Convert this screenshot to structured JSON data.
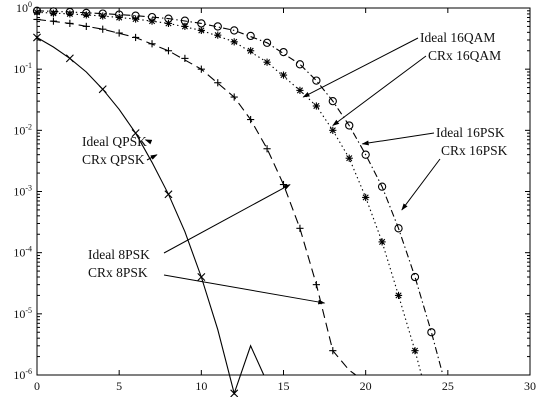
{
  "chart_data": {
    "type": "line",
    "title": "",
    "xlabel": "",
    "ylabel": "",
    "xlim": [
      0,
      30
    ],
    "ylim": [
      1e-06,
      1
    ],
    "yscale": "log",
    "grid": false,
    "xticks": [
      0,
      5,
      10,
      15,
      20,
      25,
      30
    ],
    "xtick_labels": [
      "0",
      "5",
      "10",
      "15",
      "20",
      "25",
      "30"
    ],
    "yticks": [
      1,
      0.1,
      0.01,
      0.001,
      0.0001,
      1e-05,
      1e-06
    ],
    "ytick_labels": [
      {
        "base": "10",
        "exp": "0"
      },
      {
        "base": "10",
        "exp": "-1"
      },
      {
        "base": "10",
        "exp": "-2"
      },
      {
        "base": "10",
        "exp": "-3"
      },
      {
        "base": "10",
        "exp": "-4"
      },
      {
        "base": "10",
        "exp": "-5"
      },
      {
        "base": "10",
        "exp": "-6"
      }
    ],
    "series": [
      {
        "name": "Ideal QPSK",
        "style": "solid",
        "color": "#000000",
        "x": [
          0,
          1,
          2,
          3,
          4,
          5,
          6,
          7,
          8,
          9,
          10,
          11,
          12,
          13,
          13.8
        ],
        "y": [
          0.33,
          0.23,
          0.15,
          0.09,
          0.047,
          0.022,
          0.009,
          0.003,
          0.0009,
          0.00022,
          4e-05,
          5.5e-06,
          5e-07,
          3e-06,
          1e-06
        ]
      },
      {
        "name": "CRx QPSK",
        "marker": "x",
        "color": "#000000",
        "x": [
          0,
          2,
          4,
          6,
          8,
          10,
          12
        ],
        "y": [
          0.33,
          0.15,
          0.047,
          0.009,
          0.0009,
          4e-05,
          5e-07
        ]
      },
      {
        "name": "Ideal 8PSK",
        "style": "dashed",
        "color": "#000000",
        "x": [
          0,
          2,
          4,
          6,
          8,
          10,
          12,
          13,
          14,
          15,
          16,
          17,
          18,
          19,
          19.4
        ],
        "y": [
          0.65,
          0.56,
          0.45,
          0.33,
          0.2,
          0.1,
          0.035,
          0.015,
          0.005,
          0.0013,
          0.00025,
          3e-05,
          2.5e-06,
          1.2e-06,
          1e-06
        ]
      },
      {
        "name": "CRx 8PSK",
        "marker": "+",
        "color": "#000000",
        "x": [
          0,
          1,
          2,
          3,
          4,
          5,
          6,
          7,
          8,
          9,
          10,
          11,
          12,
          13,
          14,
          15,
          16,
          17,
          18
        ],
        "y": [
          0.65,
          0.61,
          0.56,
          0.5,
          0.45,
          0.39,
          0.33,
          0.26,
          0.2,
          0.15,
          0.1,
          0.06,
          0.035,
          0.015,
          0.005,
          0.0013,
          0.00025,
          3e-05,
          2.5e-06
        ]
      },
      {
        "name": "Ideal 16QAM",
        "style": "dotted",
        "color": "#000000",
        "x": [
          0,
          2,
          4,
          6,
          8,
          10,
          12,
          14,
          16,
          17,
          18,
          19,
          20,
          21,
          22,
          23,
          23.4
        ],
        "y": [
          0.85,
          0.8,
          0.74,
          0.66,
          0.56,
          0.43,
          0.28,
          0.13,
          0.045,
          0.025,
          0.01,
          0.0035,
          0.0008,
          0.00015,
          2e-05,
          2.5e-06,
          1e-06
        ]
      },
      {
        "name": "CRx 16QAM",
        "marker": "*",
        "color": "#000000",
        "x": [
          0,
          1,
          2,
          3,
          4,
          5,
          6,
          7,
          8,
          9,
          10,
          11,
          12,
          13,
          14,
          15,
          16,
          17,
          18,
          19,
          20,
          21,
          22,
          23
        ],
        "y": [
          0.85,
          0.82,
          0.8,
          0.77,
          0.74,
          0.7,
          0.66,
          0.61,
          0.56,
          0.5,
          0.43,
          0.36,
          0.28,
          0.2,
          0.13,
          0.08,
          0.045,
          0.025,
          0.01,
          0.0035,
          0.0008,
          0.00015,
          2e-05,
          2.5e-06
        ]
      },
      {
        "name": "Ideal 16PSK",
        "style": "dashdot",
        "color": "#000000",
        "x": [
          0,
          2,
          4,
          6,
          8,
          10,
          12,
          14,
          16,
          17,
          18,
          19,
          20,
          21,
          22,
          23,
          24,
          24.7
        ],
        "y": [
          0.9,
          0.86,
          0.81,
          0.75,
          0.67,
          0.56,
          0.43,
          0.27,
          0.12,
          0.065,
          0.03,
          0.012,
          0.004,
          0.0012,
          0.00025,
          4e-05,
          5e-06,
          1e-06
        ]
      },
      {
        "name": "CRx 16PSK",
        "marker": "o",
        "color": "#000000",
        "x": [
          0,
          1,
          2,
          3,
          4,
          5,
          6,
          7,
          8,
          9,
          10,
          11,
          12,
          13,
          14,
          15,
          16,
          17,
          18,
          19,
          20,
          21,
          22,
          23,
          24
        ],
        "y": [
          0.9,
          0.88,
          0.86,
          0.83,
          0.81,
          0.78,
          0.75,
          0.71,
          0.67,
          0.62,
          0.56,
          0.5,
          0.43,
          0.35,
          0.27,
          0.19,
          0.12,
          0.065,
          0.03,
          0.012,
          0.004,
          0.0012,
          0.00025,
          4e-05,
          5e-06
        ]
      }
    ],
    "annotations": [
      {
        "text": "Ideal 16QAM",
        "points_to": [
          16.2,
          0.035
        ]
      },
      {
        "text": "CRx 16QAM",
        "points_to": [
          18.0,
          0.012
        ]
      },
      {
        "text": "Ideal 16PSK",
        "points_to": [
          19.8,
          0.006
        ]
      },
      {
        "text": "CRx 16PSK",
        "points_to": [
          22.2,
          0.0005
        ]
      },
      {
        "text": "Ideal QPSK",
        "points_to": [
          6.6,
          0.007
        ]
      },
      {
        "text": "CRx QPSK",
        "points_to": [
          7.3,
          0.004
        ]
      },
      {
        "text": "Ideal 8PSK",
        "points_to": [
          15.4,
          0.0013
        ]
      },
      {
        "text": "CRx 8PSK",
        "points_to": [
          17.5,
          1.5e-05
        ]
      }
    ]
  }
}
